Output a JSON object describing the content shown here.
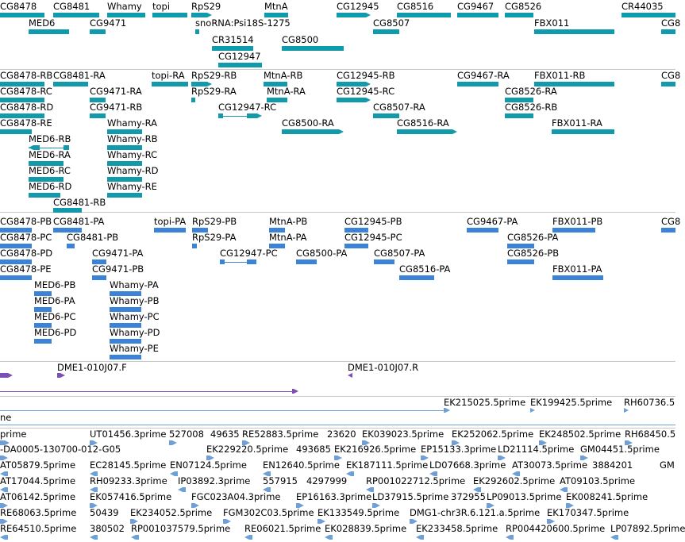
{
  "colors": {
    "gene": "#0f9bab",
    "mrna": "#139aaa",
    "protein": "#3b82d9",
    "clone": "#7b4fb5",
    "est": "#6e9fd6",
    "line": "#5a8fcf",
    "separator": "#c8c8c8"
  },
  "genes": {
    "labels": [
      "CG8478",
      "CG8481",
      "Whamy",
      "topi",
      "RpS29",
      "MtnA",
      "CG12945",
      "CG8516",
      "CG9467",
      "CG8526",
      "CR44035",
      "MED6",
      "CG9471",
      "snoRNA:Psi18S-1275",
      "CG8507",
      "FBX011",
      "CR31514",
      "CG8500",
      "CG12947",
      "CG8"
    ]
  },
  "transcripts": {
    "labels": [
      "CG8478-RB",
      "CG8481-RA",
      "topi-RA",
      "RpS29-RB",
      "MtnA-RB",
      "CG12945-RB",
      "CG9467-RA",
      "FBX011-RB",
      "CG8478-RC",
      "CG9471-RA",
      "RpS29-RA",
      "MtnA-RA",
      "CG12945-RC",
      "CG8526-RA",
      "CG8478-RD",
      "CG9471-RB",
      "CG12947-RC",
      "CG8507-RA",
      "CG8526-RB",
      "CG8478-RE",
      "Whamy-RA",
      "CG8500-RA",
      "CG8516-RA",
      "FBX011-RA",
      "MED6-RB",
      "Whamy-RB",
      "MED6-RA",
      "Whamy-RC",
      "MED6-RC",
      "Whamy-RD",
      "MED6-RD",
      "Whamy-RE",
      "CG8481-RB",
      "CG8"
    ]
  },
  "proteins": {
    "labels": [
      "CG8478-PB",
      "CG8481-PA",
      "topi-PA",
      "RpS29-PB",
      "MtnA-PB",
      "CG12945-PB",
      "CG9467-PA",
      "FBX011-PB",
      "CG8478-PC",
      "CG8481-PB",
      "RpS29-PA",
      "MtnA-PA",
      "CG12945-PC",
      "CG8526-PA",
      "CG8478-PD",
      "CG9471-PA",
      "CG12947-PC",
      "CG8500-PA",
      "CG8507-PA",
      "CG8526-PB",
      "CG8478-PE",
      "CG9471-PB",
      "CG8516-PA",
      "FBX011-PA",
      "MED6-PB",
      "Whamy-PA",
      "MED6-PA",
      "Whamy-PB",
      "MED6-PC",
      "Whamy-PC",
      "MED6-PD",
      "Whamy-PD",
      "Whamy-PE",
      "CG8"
    ]
  },
  "clones": {
    "labels": [
      "DME1-010J07.F",
      "DME1-010J07.R"
    ]
  },
  "ests_top": {
    "labels": [
      "EK215025.5prime",
      "EK199425.5prime",
      "RH60736.5",
      "ne"
    ]
  },
  "ests": {
    "labels": [
      "prime",
      "UT01456.3prime",
      "527008",
      "49635",
      "RE52883.5prime",
      "23620",
      "EK039023.5prime",
      "EK252062.5prime",
      "EK248502.5prime",
      "RH68450.5",
      "-DA0005-130700-012-G05",
      "EK229220.5prime",
      "493685",
      "EK216926.5prime",
      "EP15133.3prime",
      "LD21114.5prime",
      "GM04451.5prime",
      "AT05879.5prime",
      "EC28145.5prime",
      "EN07124.5prime",
      "EN12640.5prime",
      "EK187111.5prime",
      "LD07668.3prime",
      "AT30073.5prime",
      "3884201",
      "GM",
      "AT17044.5prime",
      "RH09233.3prime",
      "IP03892.3prime",
      "557915",
      "4297999",
      "RP001022712.5prime",
      "EK292602.5prime",
      "AT09103.5prime",
      "AT06142.5prime",
      "EK057416.5prime",
      "FGC023A04.3prime",
      "EP16163.3prime",
      "LD37915.5prime",
      "372955",
      "LP09013.5prime",
      "EK008241.5prime",
      "RE68063.5prime",
      "50439",
      "EK234052.5prime",
      "FGM302C03.5prime",
      "EK133549.5prime",
      "DMG1-chr3R.6.121.a.5prime",
      "EK170347.5prime",
      "RE64510.5prime",
      "380502",
      "RP001037579.5prime",
      "RE06021.5prime",
      "EK028839.5prime",
      "EK233458.5prime",
      "RP004420600.5prime",
      "LP07892.5prime"
    ]
  }
}
